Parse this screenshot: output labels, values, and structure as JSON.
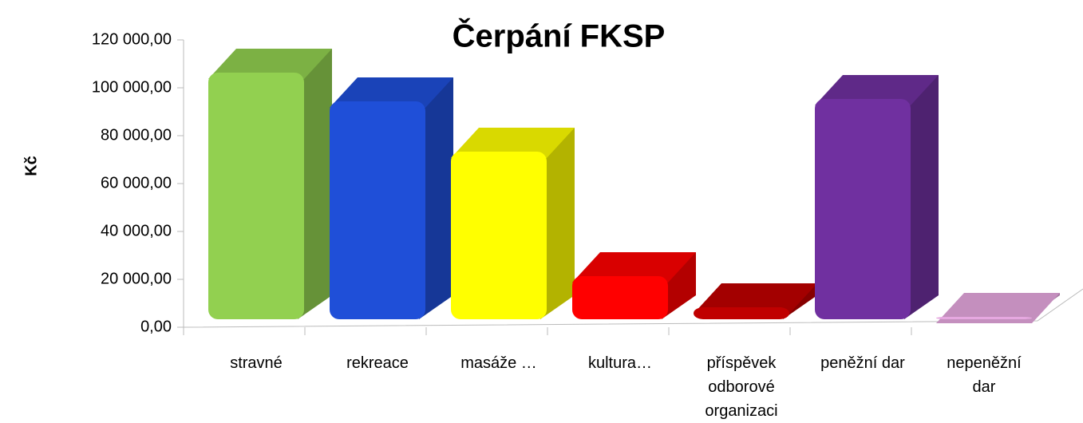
{
  "chart_data": {
    "type": "bar3d",
    "title": "Čerpání FKSP",
    "y_label": "Kč",
    "categories": [
      "stravné",
      "rekreace",
      "masáže …",
      "kultura…",
      "příspěvek odborové organizaci",
      "peněžní dar",
      "nepeněžní dar"
    ],
    "values": [
      103000,
      91000,
      70000,
      18000,
      5000,
      92000,
      1000
    ],
    "colors": [
      "#92d050",
      "#1f4fd8",
      "#ffff00",
      "#ff0000",
      "#c00000",
      "#7030a0",
      "#e6a8e0"
    ],
    "ylim": [
      0,
      120000
    ],
    "yticks": [
      {
        "value": 0,
        "label": "0,00"
      },
      {
        "value": 20000,
        "label": "20 000,00"
      },
      {
        "value": 40000,
        "label": "40 000,00"
      },
      {
        "value": 60000,
        "label": "60 000,00"
      },
      {
        "value": 80000,
        "label": "80 000,00"
      },
      {
        "value": 100000,
        "label": "100 000,00"
      },
      {
        "value": 120000,
        "label": "120 000,00"
      }
    ]
  }
}
